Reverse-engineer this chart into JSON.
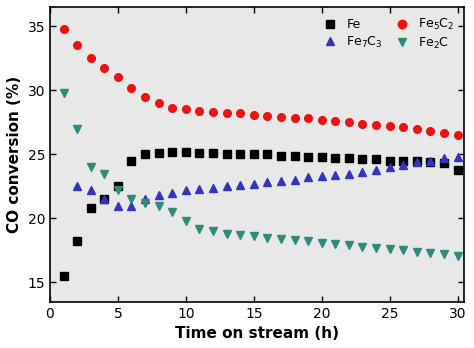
{
  "Fe_x": [
    1,
    2,
    3,
    4,
    5,
    6,
    7,
    8,
    9,
    10,
    11,
    12,
    13,
    14,
    15,
    16,
    17,
    18,
    19,
    20,
    21,
    22,
    23,
    24,
    25,
    26,
    27,
    28,
    29,
    30
  ],
  "Fe_y": [
    15.5,
    18.2,
    20.8,
    21.5,
    22.5,
    24.5,
    25.0,
    25.1,
    25.2,
    25.2,
    25.1,
    25.1,
    25.0,
    25.0,
    25.0,
    25.0,
    24.9,
    24.9,
    24.8,
    24.8,
    24.7,
    24.7,
    24.6,
    24.6,
    24.5,
    24.5,
    24.5,
    24.4,
    24.3,
    23.8
  ],
  "Fe5C2_x": [
    1,
    2,
    3,
    4,
    5,
    6,
    7,
    8,
    9,
    10,
    11,
    12,
    13,
    14,
    15,
    16,
    17,
    18,
    19,
    20,
    21,
    22,
    23,
    24,
    25,
    26,
    27,
    28,
    29,
    30
  ],
  "Fe5C2_y": [
    34.8,
    33.5,
    32.5,
    31.7,
    31.0,
    30.2,
    29.5,
    29.0,
    28.6,
    28.5,
    28.4,
    28.3,
    28.2,
    28.2,
    28.1,
    28.0,
    27.9,
    27.8,
    27.8,
    27.7,
    27.6,
    27.5,
    27.4,
    27.3,
    27.2,
    27.1,
    27.0,
    26.8,
    26.7,
    26.5
  ],
  "Fe7C3_x": [
    2,
    3,
    4,
    5,
    6,
    7,
    8,
    9,
    10,
    11,
    12,
    13,
    14,
    15,
    16,
    17,
    18,
    19,
    20,
    21,
    22,
    23,
    24,
    25,
    26,
    27,
    28,
    29,
    30
  ],
  "Fe7C3_y": [
    22.5,
    22.2,
    21.5,
    21.0,
    21.0,
    21.5,
    21.8,
    22.0,
    22.2,
    22.3,
    22.4,
    22.5,
    22.6,
    22.7,
    22.8,
    22.9,
    23.0,
    23.2,
    23.3,
    23.4,
    23.5,
    23.6,
    23.8,
    24.0,
    24.2,
    24.4,
    24.5,
    24.7,
    24.8
  ],
  "Fe2C_x": [
    1,
    2,
    3,
    4,
    5,
    6,
    7,
    8,
    9,
    10,
    11,
    12,
    13,
    14,
    15,
    16,
    17,
    18,
    19,
    20,
    21,
    22,
    23,
    24,
    25,
    26,
    27,
    28,
    29,
    30
  ],
  "Fe2C_y": [
    29.8,
    27.0,
    24.0,
    23.5,
    22.2,
    21.5,
    21.2,
    21.0,
    20.5,
    19.8,
    19.2,
    19.0,
    18.8,
    18.7,
    18.6,
    18.5,
    18.4,
    18.3,
    18.2,
    18.1,
    18.0,
    17.9,
    17.8,
    17.7,
    17.6,
    17.5,
    17.4,
    17.3,
    17.2,
    17.1
  ],
  "Fe_color": "#000000",
  "Fe5C2_color": "#ee1111",
  "Fe7C3_color": "#3333bb",
  "Fe2C_color": "#2e8b7a",
  "xlabel": "Time on stream (h)",
  "ylabel": "CO conversion (%)",
  "xlim": [
    0,
    30.5
  ],
  "ylim": [
    13.5,
    36.5
  ],
  "xticks": [
    0,
    5,
    10,
    15,
    20,
    25,
    30
  ],
  "yticks": [
    15,
    20,
    25,
    30,
    35
  ],
  "background_color": "#ffffff",
  "plot_bg_color": "#e8e8e8",
  "legend_Fe": "Fe",
  "legend_Fe5C2": "Fe$_5$C$_2$",
  "legend_Fe7C3": "Fe$_7$C$_3$",
  "legend_Fe2C": "Fe$_2$C",
  "marker_size": 5.5,
  "xlabel_fontsize": 11,
  "ylabel_fontsize": 11,
  "tick_fontsize": 10
}
